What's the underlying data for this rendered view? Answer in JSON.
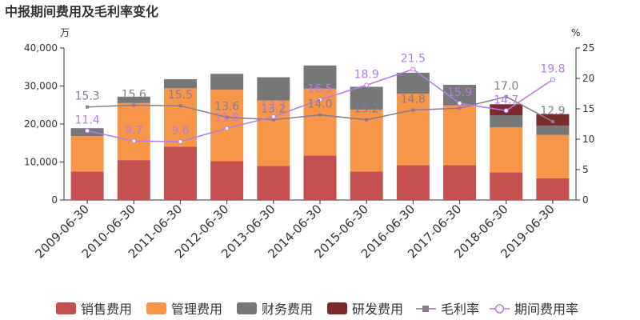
{
  "chart_data": {
    "type": "bar",
    "title": "中报期间费用及毛利率变化",
    "left_axis_unit": "万",
    "right_axis_unit": "%",
    "categories": [
      "2009-06-30",
      "2010-06-30",
      "2011-06-30",
      "2012-06-30",
      "2013-06-30",
      "2014-06-30",
      "2015-06-30",
      "2016-06-30",
      "2017-06-30",
      "2018-06-30",
      "2019-06-30"
    ],
    "ylim_left": [
      0,
      40000
    ],
    "ylim_right": [
      0,
      25
    ],
    "left_ticks": [
      "0",
      "10,000",
      "20,000",
      "30,000",
      "40,000"
    ],
    "right_ticks": [
      "0",
      "5",
      "10",
      "15",
      "20",
      "25"
    ],
    "series": [
      {
        "name": "销售费用",
        "kind": "bar",
        "color": "#c4504f",
        "values": [
          7500,
          10500,
          14000,
          10200,
          9000,
          11700,
          7500,
          9200,
          9200,
          7300,
          5700
        ]
      },
      {
        "name": "管理费用",
        "kind": "bar",
        "color": "#f79646",
        "values": [
          9300,
          15000,
          15400,
          18800,
          17200,
          17600,
          16300,
          18800,
          15700,
          11800,
          11400
        ]
      },
      {
        "name": "财务费用",
        "kind": "bar",
        "color": "#777777",
        "values": [
          2100,
          1700,
          2400,
          4200,
          6100,
          6100,
          6000,
          5500,
          5400,
          3200,
          2500
        ]
      },
      {
        "name": "研发费用",
        "kind": "bar",
        "color": "#7b2b2b",
        "values": [
          0,
          0,
          0,
          0,
          0,
          0,
          0,
          0,
          0,
          2900,
          3000
        ]
      },
      {
        "name": "毛利率",
        "kind": "line",
        "axis": "right",
        "color": "#8a7a96",
        "values": [
          15.3,
          15.6,
          15.5,
          13.6,
          13.2,
          14.0,
          13.2,
          14.8,
          15.1,
          17.0,
          12.9
        ],
        "labels": [
          "15.3",
          "15.6",
          "15.5",
          "13.6",
          "13.2",
          "14.0",
          "13.2",
          "14.8",
          "",
          "17.0",
          "12.9"
        ]
      },
      {
        "name": "期间费用率",
        "kind": "line",
        "axis": "right",
        "color": "#b57bea",
        "values": [
          11.4,
          9.7,
          9.6,
          11.8,
          13.7,
          16.5,
          18.9,
          21.5,
          15.9,
          14.7,
          19.8
        ],
        "labels": [
          "11.4",
          "9.7",
          "9.6",
          "11.8",
          "13.7",
          "16.5",
          "18.9",
          "21.5",
          "15.9",
          "14.7",
          "19.8"
        ]
      }
    ],
    "legend_position": "bottom",
    "grid": false
  }
}
